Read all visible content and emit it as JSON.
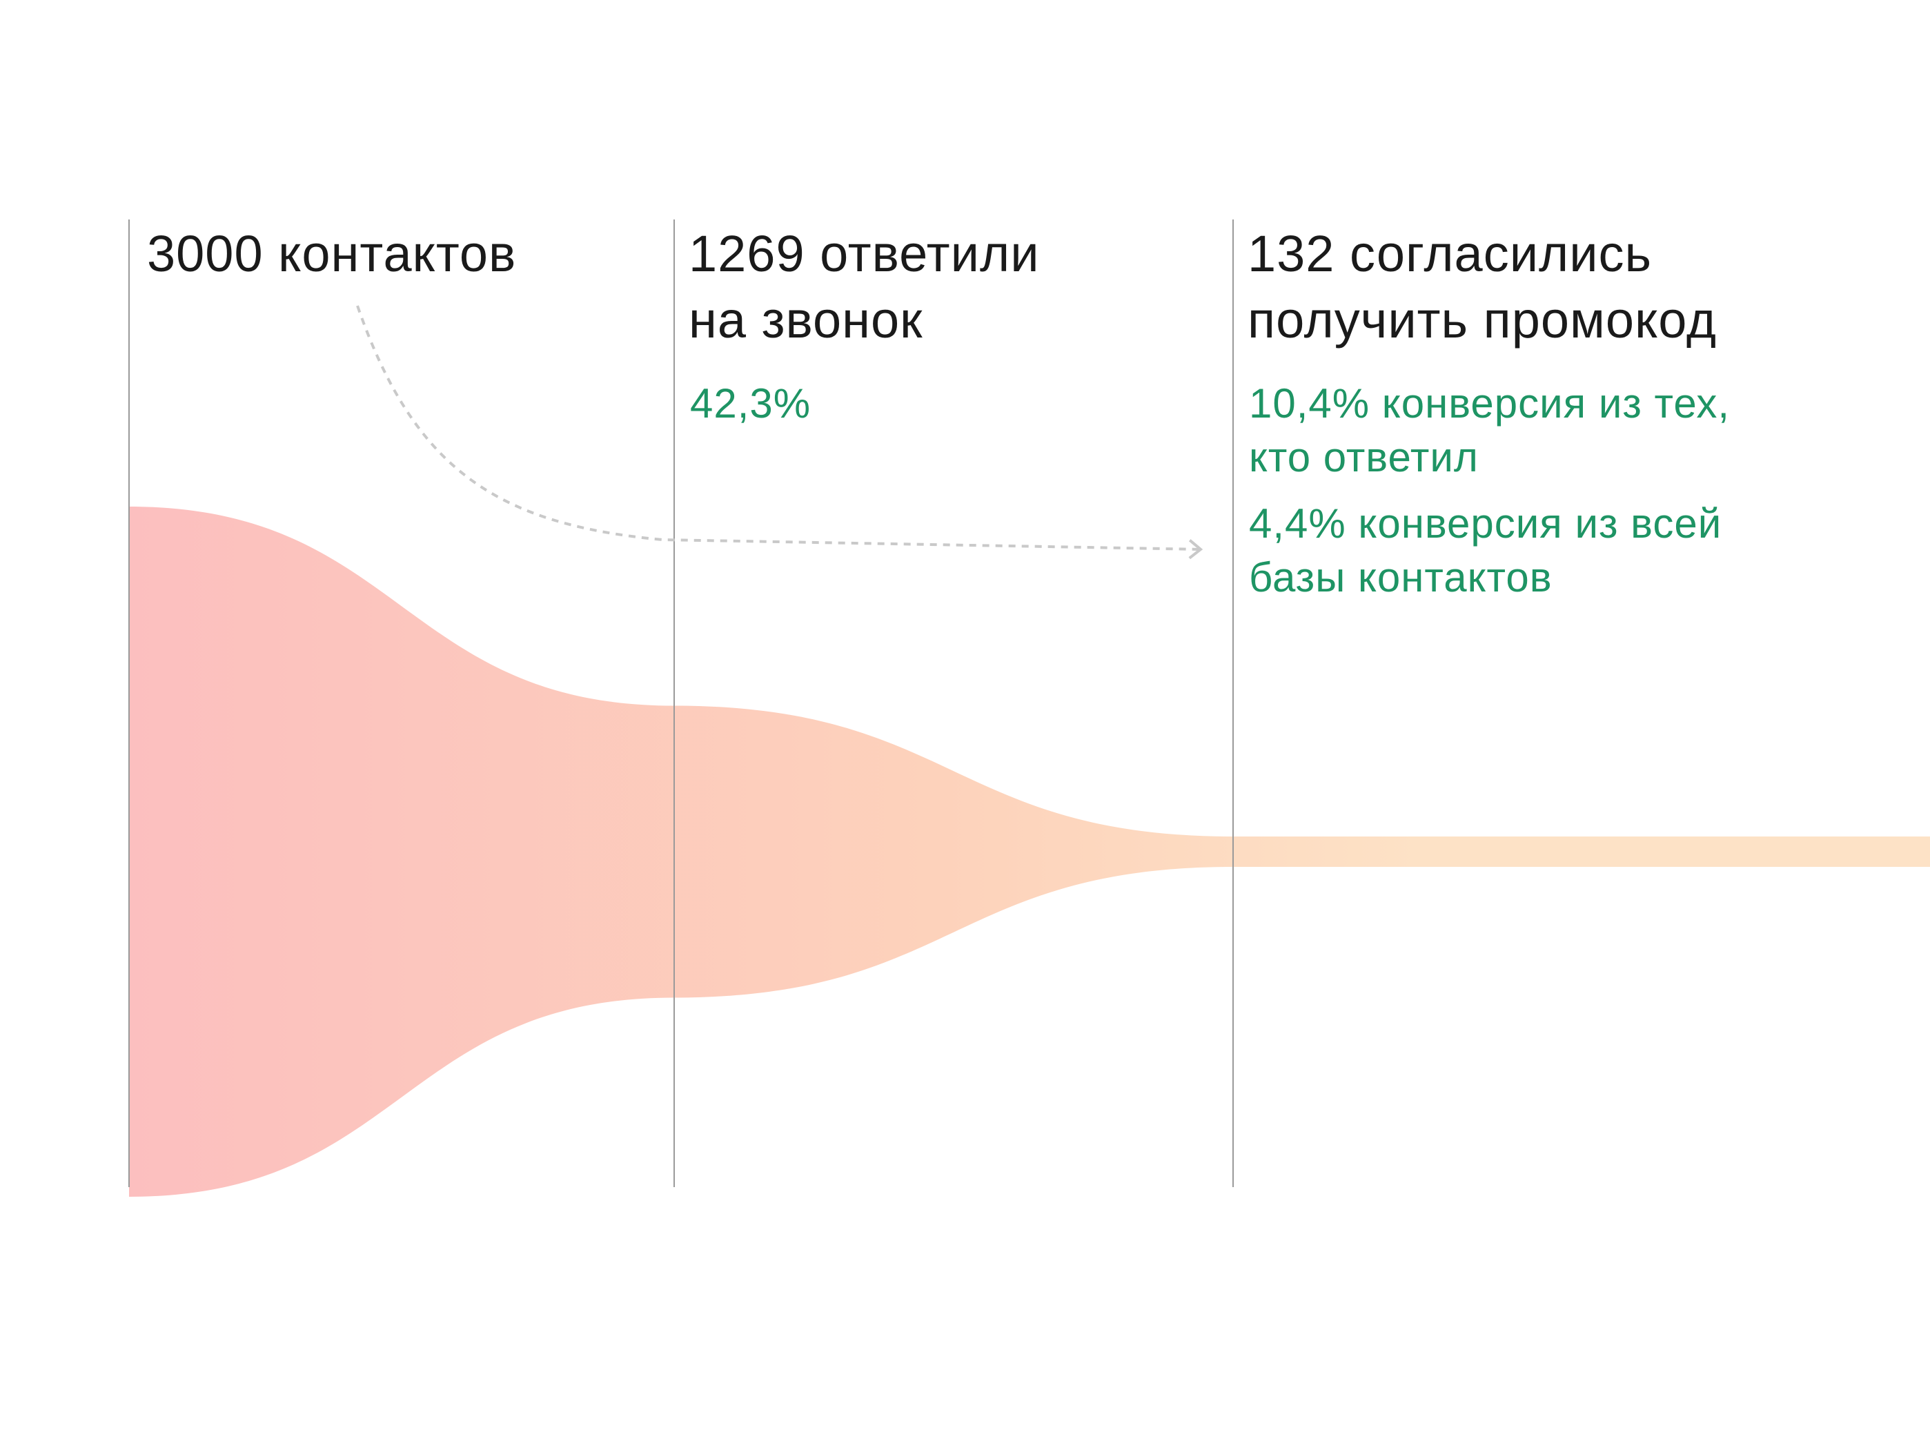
{
  "colors": {
    "funnel_start": "#fcbfbf",
    "funnel_mid": "#fdd2bb",
    "funnel_end": "#fde2c6",
    "accent_green": "#1e9464",
    "divider": "#9a9a9a",
    "arrow": "#c9c9c9",
    "text": "#1a1a1a"
  },
  "chart_data": {
    "type": "funnel",
    "stages": [
      {
        "value": 3000,
        "label": "3000 контактов",
        "notes": []
      },
      {
        "value": 1269,
        "label": "1269 ответили\nна звонок",
        "notes": [
          "42,3%"
        ]
      },
      {
        "value": 132,
        "label": "132 согласились\nполучить промокод",
        "notes": [
          "10,4% конверсия из тех,\nкто ответил",
          "4,4% конверсия из всей\nбазы контактов"
        ]
      }
    ]
  }
}
